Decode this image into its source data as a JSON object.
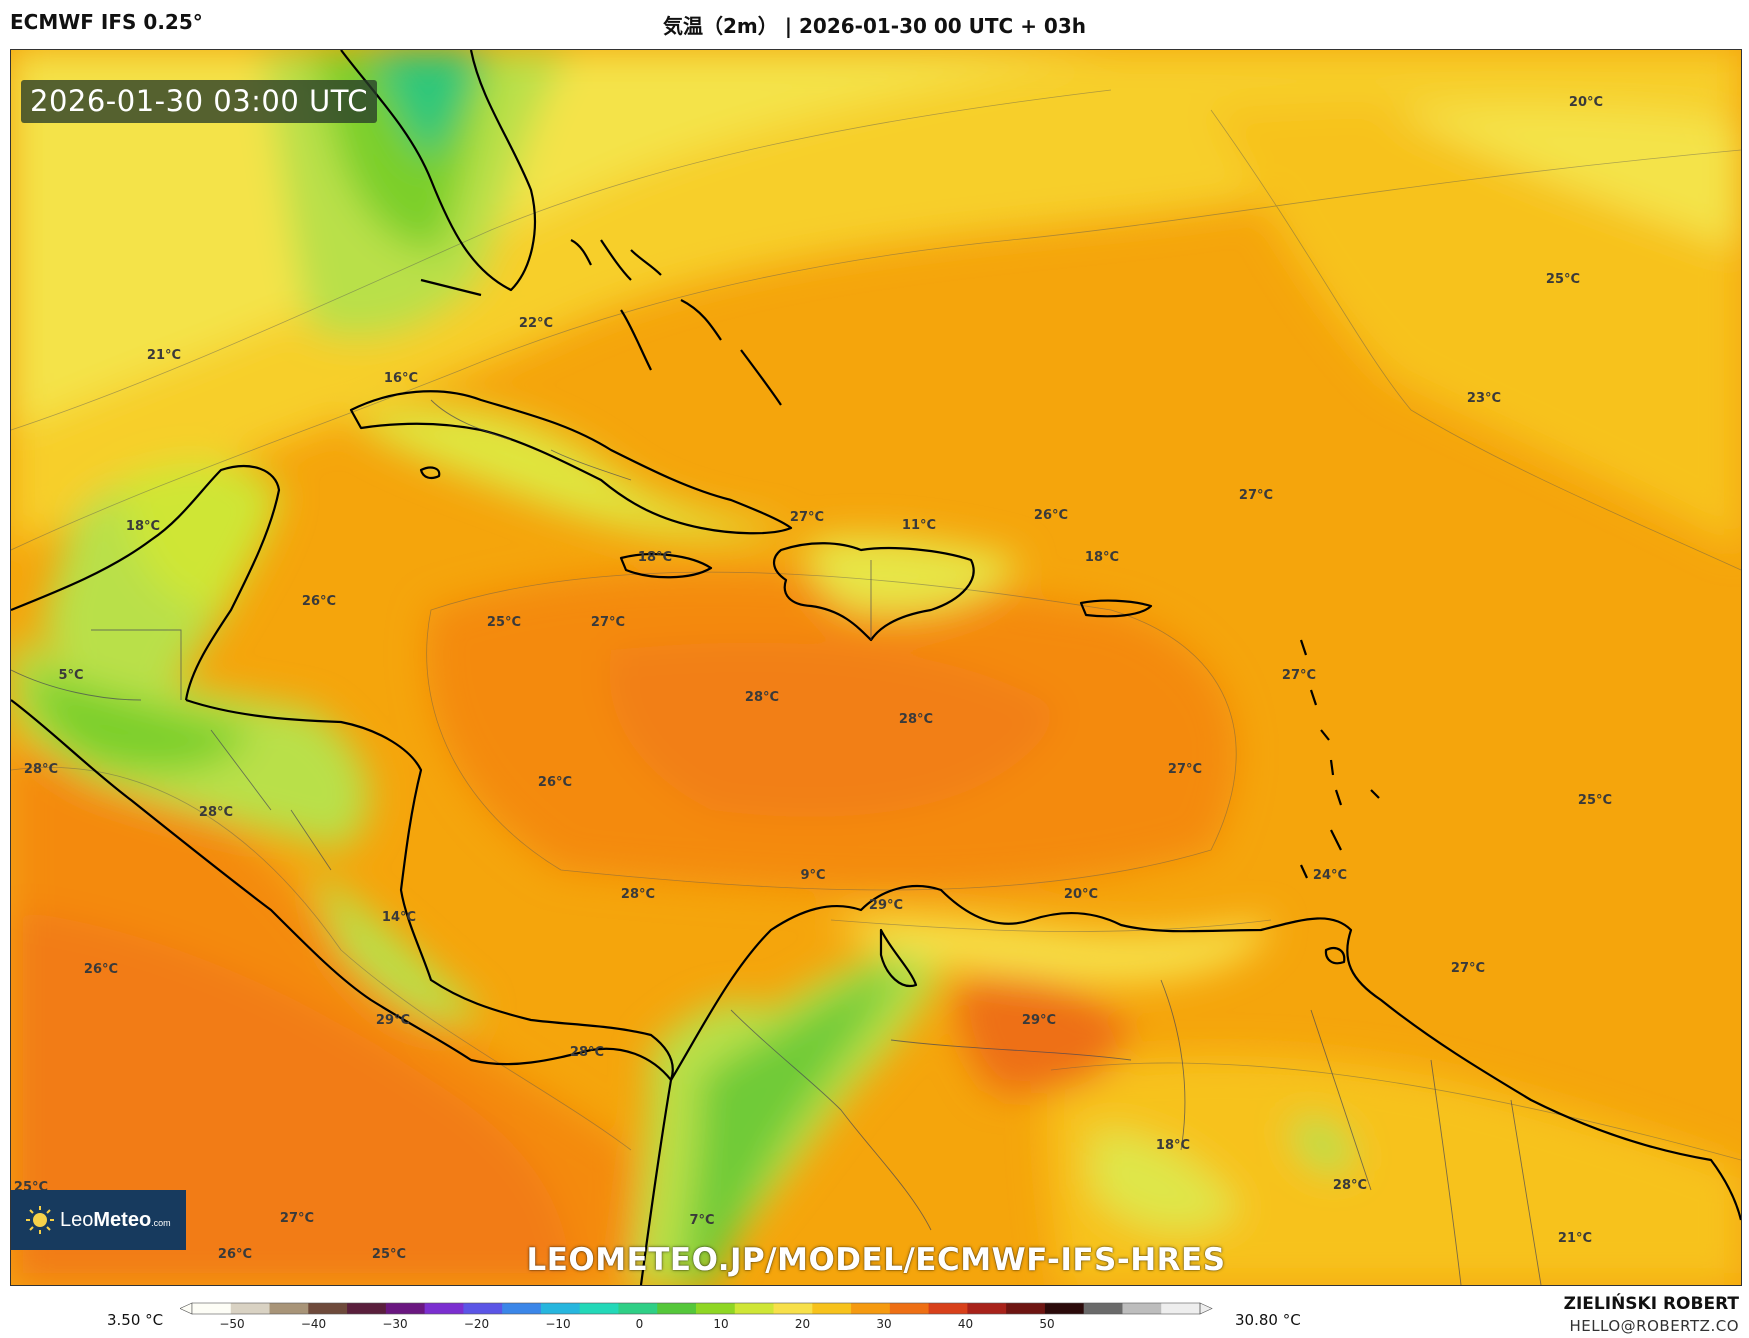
{
  "header": {
    "model": "ECMWF IFS 0.25°",
    "title": "気温（2m） | 2026-01-30 00 UTC + 03h"
  },
  "map": {
    "valid_time": "2026-01-30 03:00 UTC",
    "watermark": "LEOMETEO.JP/MODEL/ECMWF-IFS-HRES",
    "logo": {
      "leo": "Leo",
      "meteo": "Meteo",
      "suffix": ".com"
    },
    "colors": {
      "cold_green": "#2fc77a",
      "green": "#7ccf2a",
      "light_green": "#b9e04a",
      "yellow": "#f4e34a",
      "gold": "#f7c21c",
      "orange": "#f5a20a",
      "deep_orange": "#f48a10",
      "red_orange": "#ee6f14",
      "coast": "#000000"
    },
    "labels": [
      {
        "t": "20°C"
      },
      {
        "t": "25°C"
      },
      {
        "t": "22°C"
      },
      {
        "t": "21°C"
      },
      {
        "t": "16°C"
      },
      {
        "t": "23°C"
      },
      {
        "t": "27°C"
      },
      {
        "t": "18°C"
      },
      {
        "t": "27°C"
      },
      {
        "t": "11°C"
      },
      {
        "t": "26°C"
      },
      {
        "t": "18°C"
      },
      {
        "t": "18°C"
      },
      {
        "t": "26°C"
      },
      {
        "t": "25°C"
      },
      {
        "t": "27°C"
      },
      {
        "t": "5°C"
      },
      {
        "t": "28°C"
      },
      {
        "t": "28°C"
      },
      {
        "t": "27°C"
      },
      {
        "t": "28°C"
      },
      {
        "t": "26°C"
      },
      {
        "t": "27°C"
      },
      {
        "t": "28°C"
      },
      {
        "t": "25°C"
      },
      {
        "t": "9°C"
      },
      {
        "t": "28°C"
      },
      {
        "t": "29°C"
      },
      {
        "t": "20°C"
      },
      {
        "t": "24°C"
      },
      {
        "t": "14°C"
      },
      {
        "t": "26°C"
      },
      {
        "t": "27°C"
      },
      {
        "t": "29°C"
      },
      {
        "t": "29°C"
      },
      {
        "t": "28°C"
      },
      {
        "t": "18°C"
      },
      {
        "t": "28°C"
      },
      {
        "t": "25°C"
      },
      {
        "t": "27°C"
      },
      {
        "t": "26°C"
      },
      {
        "t": "25°C"
      },
      {
        "t": "7°C"
      },
      {
        "t": "21°C"
      }
    ]
  },
  "legend": {
    "min": "3.50 °C",
    "max": "30.80 °C",
    "ticks": [
      "−50",
      "−40",
      "−30",
      "−20",
      "−10",
      "0",
      "10",
      "20",
      "30",
      "40",
      "50"
    ],
    "colors": [
      "#fdfdf6",
      "#d9d2c3",
      "#a89478",
      "#6e4a3b",
      "#5a1f3c",
      "#6a1780",
      "#7b2fd0",
      "#5b55e6",
      "#3b86e8",
      "#27b6de",
      "#23d8b8",
      "#2fcf86",
      "#55c73a",
      "#8fd624",
      "#cfe636",
      "#f7e04a",
      "#f7c21c",
      "#f59a10",
      "#ee6f14",
      "#d8401a",
      "#a8221a",
      "#6e1512",
      "#2b0a0a",
      "#6a6a6a",
      "#bdbdbd",
      "#eeeeee"
    ]
  },
  "footer": {
    "author": "ZIELIŃSKI ROBERT",
    "email": "HELLO@ROBERTZ.CO"
  }
}
